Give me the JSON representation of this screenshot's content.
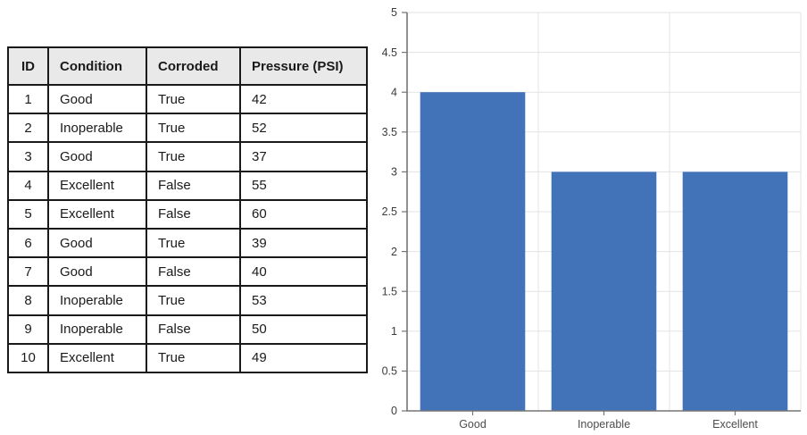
{
  "table": {
    "columns": [
      "ID",
      "Condition",
      "Corroded",
      "Pressure (PSI)"
    ],
    "rows": [
      [
        "1",
        "Good",
        "True",
        "42"
      ],
      [
        "2",
        "Inoperable",
        "True",
        "52"
      ],
      [
        "3",
        "Good",
        "True",
        "37"
      ],
      [
        "4",
        "Excellent",
        "False",
        "55"
      ],
      [
        "5",
        "Excellent",
        "False",
        "60"
      ],
      [
        "6",
        "Good",
        "True",
        "39"
      ],
      [
        "7",
        "Good",
        "False",
        "40"
      ],
      [
        "8",
        "Inoperable",
        "True",
        "53"
      ],
      [
        "9",
        "Inoperable",
        "False",
        "50"
      ],
      [
        "10",
        "Excellent",
        "True",
        "49"
      ]
    ],
    "header_bg": "#E9E9E9",
    "border_color": "#1A1A1A"
  },
  "chart_data": {
    "type": "bar",
    "categories": [
      "Good",
      "Inoperable",
      "Excellent"
    ],
    "values": [
      4,
      3,
      3
    ],
    "title": "",
    "xlabel": "",
    "ylabel": "",
    "ylim": [
      0,
      5
    ],
    "ytick_step": 0.5,
    "yticks": [
      "0",
      "0.5",
      "1",
      "1.5",
      "2",
      "2.5",
      "3",
      "3.5",
      "4",
      "4.5",
      "5"
    ],
    "grid": true,
    "legend": "none",
    "bar_color": "#4273B8",
    "gridline_color": "#E3E3E3",
    "axis_color": "#757575",
    "tick_label_color": "#3B3B3B",
    "category_label_color": "#4D4D4D"
  }
}
